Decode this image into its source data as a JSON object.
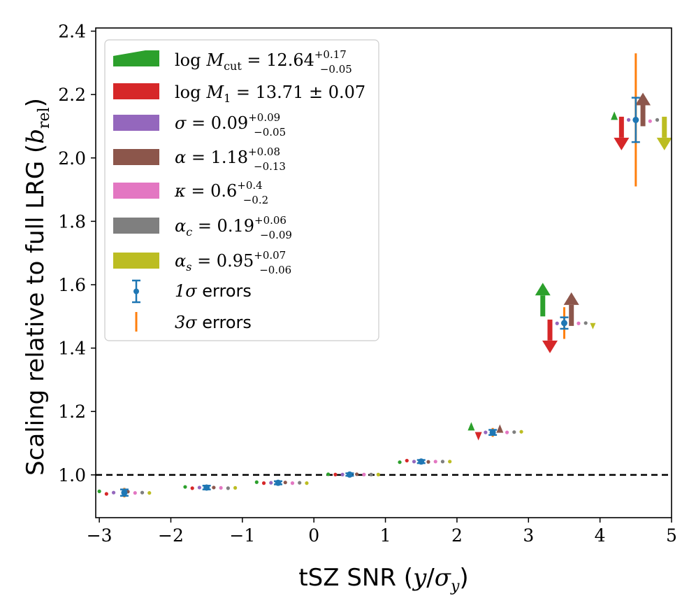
{
  "chart_data": {
    "type": "scatter",
    "xlabel": "tSZ SNR (y/σ_y)",
    "ylabel": "Scaling relative to full LRG (b_rel)",
    "xlim": [
      -3.05,
      5.0
    ],
    "ylim": [
      0.865,
      2.41
    ],
    "xticks": [
      "−3",
      "−2",
      "−1",
      "0",
      "1",
      "2",
      "3",
      "4",
      "5"
    ],
    "xtick_values": [
      -3,
      -2,
      -1,
      0,
      1,
      2,
      3,
      4,
      5
    ],
    "yticks": [
      "1.0",
      "1.2",
      "1.4",
      "1.6",
      "1.8",
      "2.0",
      "2.2",
      "2.4"
    ],
    "ytick_values": [
      1.0,
      1.2,
      1.4,
      1.6,
      1.8,
      2.0,
      2.2,
      2.4
    ],
    "reference_line": {
      "y": 1.0,
      "style": "dashed"
    },
    "bins": [
      {
        "x": -2.65,
        "y": 0.944,
        "err1": 0.01,
        "err3": 0.015
      },
      {
        "x": -1.5,
        "y": 0.96,
        "err1": 0.006,
        "err3": 0.009
      },
      {
        "x": -0.5,
        "y": 0.975,
        "err1": 0.005,
        "err3": 0.008
      },
      {
        "x": 0.5,
        "y": 1.001,
        "err1": 0.004,
        "err3": 0.006
      },
      {
        "x": 1.5,
        "y": 1.042,
        "err1": 0.005,
        "err3": 0.008
      },
      {
        "x": 2.5,
        "y": 1.134,
        "err1": 0.008,
        "err3": 0.014
      },
      {
        "x": 3.5,
        "y": 1.479,
        "err1": 0.018,
        "err3": 0.05
      },
      {
        "x": 4.5,
        "y": 2.12,
        "err1": 0.07,
        "err3": 0.21
      }
    ],
    "parameter_points": [
      {
        "param": "logMcut",
        "points": [
          {
            "x": -3.0,
            "y": 0.948,
            "marker": "dot"
          },
          {
            "x": -1.8,
            "y": 0.962,
            "marker": "dot"
          },
          {
            "x": -0.8,
            "y": 0.977,
            "marker": "dot"
          },
          {
            "x": 0.2,
            "y": 1.002,
            "marker": "dot"
          },
          {
            "x": 1.2,
            "y": 1.04,
            "marker": "dot"
          },
          {
            "x": 2.2,
            "y": 1.14,
            "marker": "up_small"
          },
          {
            "x": 3.2,
            "y": 1.5,
            "marker": "up_big"
          },
          {
            "x": 4.2,
            "y": 2.12,
            "marker": "up_small"
          }
        ]
      },
      {
        "param": "logM1",
        "points": [
          {
            "x": -2.9,
            "y": 0.94,
            "marker": "dot"
          },
          {
            "x": -1.7,
            "y": 0.958,
            "marker": "dot"
          },
          {
            "x": -0.7,
            "y": 0.974,
            "marker": "dot"
          },
          {
            "x": 0.3,
            "y": 1.001,
            "marker": "dot"
          },
          {
            "x": 1.3,
            "y": 1.045,
            "marker": "dot"
          },
          {
            "x": 2.3,
            "y": 1.135,
            "marker": "down_small"
          },
          {
            "x": 3.3,
            "y": 1.49,
            "marker": "down_big"
          },
          {
            "x": 4.3,
            "y": 2.13,
            "marker": "down_big"
          }
        ]
      },
      {
        "param": "sigma",
        "points": [
          {
            "x": -2.8,
            "y": 0.944,
            "marker": "dot"
          },
          {
            "x": -1.6,
            "y": 0.96,
            "marker": "dot"
          },
          {
            "x": -0.6,
            "y": 0.975,
            "marker": "dot"
          },
          {
            "x": 0.4,
            "y": 1.001,
            "marker": "dot"
          },
          {
            "x": 1.4,
            "y": 1.042,
            "marker": "dot"
          },
          {
            "x": 2.4,
            "y": 1.134,
            "marker": "dot"
          },
          {
            "x": 3.4,
            "y": 1.478,
            "marker": "dot"
          },
          {
            "x": 4.4,
            "y": 2.12,
            "marker": "dot"
          }
        ]
      },
      {
        "param": "alpha",
        "points": [
          {
            "x": -2.6,
            "y": 0.947,
            "marker": "dot"
          },
          {
            "x": -1.4,
            "y": 0.96,
            "marker": "dot"
          },
          {
            "x": -0.4,
            "y": 0.976,
            "marker": "dot"
          },
          {
            "x": 0.6,
            "y": 1.002,
            "marker": "dot"
          },
          {
            "x": 1.6,
            "y": 1.041,
            "marker": "dot"
          },
          {
            "x": 2.6,
            "y": 1.133,
            "marker": "up_small"
          },
          {
            "x": 3.6,
            "y": 1.47,
            "marker": "up_big"
          },
          {
            "x": 4.6,
            "y": 2.1,
            "marker": "up_big"
          }
        ]
      },
      {
        "param": "kappa",
        "points": [
          {
            "x": -2.5,
            "y": 0.943,
            "marker": "dot"
          },
          {
            "x": -1.3,
            "y": 0.959,
            "marker": "dot"
          },
          {
            "x": -0.3,
            "y": 0.974,
            "marker": "dot"
          },
          {
            "x": 0.7,
            "y": 1.001,
            "marker": "dot"
          },
          {
            "x": 1.7,
            "y": 1.042,
            "marker": "dot"
          },
          {
            "x": 2.7,
            "y": 1.134,
            "marker": "dot"
          },
          {
            "x": 3.7,
            "y": 1.478,
            "marker": "dot"
          },
          {
            "x": 4.7,
            "y": 2.116,
            "marker": "dot"
          }
        ]
      },
      {
        "param": "alpha_c",
        "points": [
          {
            "x": -2.4,
            "y": 0.944,
            "marker": "dot"
          },
          {
            "x": -1.2,
            "y": 0.958,
            "marker": "dot"
          },
          {
            "x": -0.2,
            "y": 0.975,
            "marker": "dot"
          },
          {
            "x": 0.8,
            "y": 1.001,
            "marker": "dot"
          },
          {
            "x": 1.8,
            "y": 1.042,
            "marker": "dot"
          },
          {
            "x": 2.8,
            "y": 1.135,
            "marker": "dot"
          },
          {
            "x": 3.8,
            "y": 1.479,
            "marker": "dot"
          },
          {
            "x": 4.8,
            "y": 2.12,
            "marker": "dot"
          }
        ]
      },
      {
        "param": "alpha_s",
        "points": [
          {
            "x": -2.3,
            "y": 0.943,
            "marker": "dot"
          },
          {
            "x": -1.1,
            "y": 0.959,
            "marker": "dot"
          },
          {
            "x": -0.1,
            "y": 0.974,
            "marker": "dot"
          },
          {
            "x": 0.9,
            "y": 1.001,
            "marker": "dot"
          },
          {
            "x": 1.9,
            "y": 1.042,
            "marker": "dot"
          },
          {
            "x": 2.9,
            "y": 1.136,
            "marker": "dot"
          },
          {
            "x": 3.9,
            "y": 1.479,
            "marker": "down_tiny"
          },
          {
            "x": 4.9,
            "y": 2.13,
            "marker": "down_big"
          }
        ]
      }
    ],
    "legend": {
      "placement": "top-left",
      "entries": [
        {
          "key": "logMcut",
          "color": "#2ca02c",
          "text": "log M_cut = 12.64 +0.17 −0.05"
        },
        {
          "key": "logM1",
          "color": "#d62728",
          "text": "log M_1 = 13.71 ± 0.07"
        },
        {
          "key": "sigma",
          "color": "#9467bd",
          "text": "σ = 0.09 +0.09 −0.05"
        },
        {
          "key": "alpha",
          "color": "#8c564b",
          "text": "α = 1.18 +0.08 −0.13"
        },
        {
          "key": "kappa",
          "color": "#e377c2",
          "text": "κ = 0.6 +0.4 −0.2"
        },
        {
          "key": "alpha_c",
          "color": "#7f7f7f",
          "text": "α_c = 0.19 +0.06 −0.09"
        },
        {
          "key": "alpha_s",
          "color": "#bcbd22",
          "text": "α_s = 0.95 +0.07 −0.06"
        },
        {
          "key": "err1",
          "color": "#1f77b4",
          "text": "1σ errors"
        },
        {
          "key": "err3",
          "color": "#ff7f0e",
          "text": "3σ errors"
        }
      ]
    }
  },
  "legend_labels": {
    "logMcut": {
      "lhs": "log",
      "var": "M",
      "sub": "cut",
      "mid": " = 12.64",
      "sup": "+0.17",
      "low": "−0.05"
    },
    "logM1": {
      "lhs": "log",
      "var": "M",
      "sub": "1",
      "mid": " = 13.71 ± 0.07"
    },
    "sigma": {
      "var": "σ",
      "mid": " = 0.09",
      "sup": "+0.09",
      "low": "−0.05"
    },
    "alpha": {
      "var": "α",
      "mid": " = 1.18",
      "sup": "+0.08",
      "low": "−0.13"
    },
    "kappa": {
      "var": "κ",
      "mid": " = 0.6",
      "sup": "+0.4",
      "low": "−0.2"
    },
    "alpha_c": {
      "var": "α",
      "sub": "c",
      "mid": " = 0.19",
      "sup": "+0.06",
      "low": "−0.09"
    },
    "alpha_s": {
      "var": "α",
      "sub": "s",
      "mid": " = 0.95",
      "sup": "+0.07",
      "low": "−0.06"
    },
    "err1": {
      "var": "1σ",
      "rest": " errors"
    },
    "err3": {
      "var": "3σ",
      "rest": " errors"
    }
  },
  "axis_text": {
    "xlabel_main": "tSZ SNR (",
    "xlabel_var": "y",
    "xlabel_slash": "/",
    "xlabel_sigma": "σ",
    "xlabel_sub": "y",
    "xlabel_close": ")",
    "ylabel_main": "Scaling relative to full LRG (",
    "ylabel_var": "b",
    "ylabel_sub": "rel",
    "ylabel_close": ")"
  }
}
